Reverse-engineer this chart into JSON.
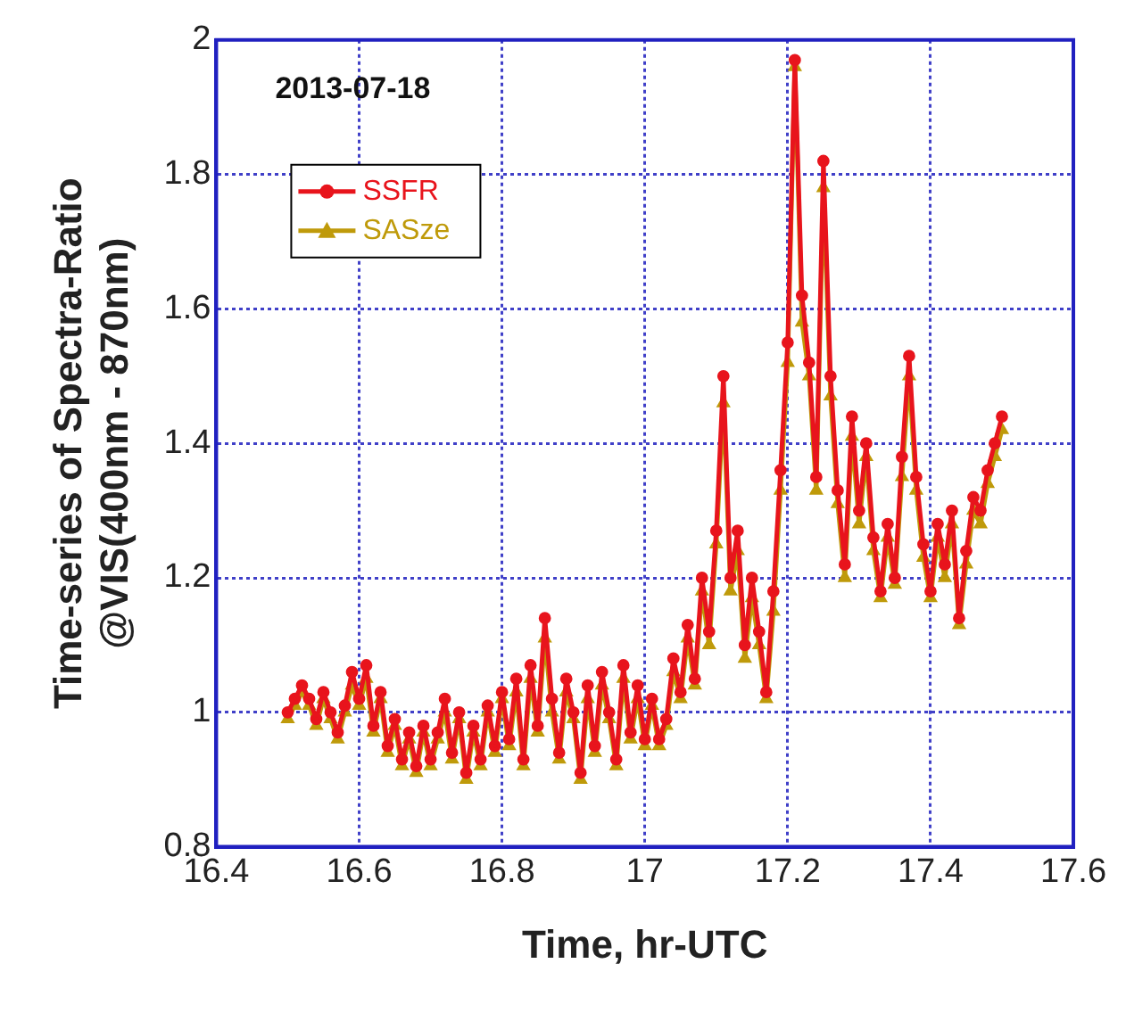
{
  "chart_data": {
    "type": "line",
    "xlabel": "Time, hr-UTC",
    "ylabel": "Time-series of Spectra-Ratio\n@VIS(400nm - 870nm)",
    "annotations": [
      "2013-07-18"
    ],
    "x": [
      16.5,
      16.51,
      16.52,
      16.53,
      16.54,
      16.55,
      16.56,
      16.57,
      16.58,
      16.59,
      16.6,
      16.61,
      16.62,
      16.63,
      16.64,
      16.65,
      16.66,
      16.67,
      16.68,
      16.69,
      16.7,
      16.71,
      16.72,
      16.73,
      16.74,
      16.75,
      16.76,
      16.77,
      16.78,
      16.79,
      16.8,
      16.81,
      16.82,
      16.83,
      16.84,
      16.85,
      16.86,
      16.87,
      16.88,
      16.89,
      16.9,
      16.91,
      16.92,
      16.93,
      16.94,
      16.95,
      16.96,
      16.97,
      16.98,
      16.99,
      17.0,
      17.01,
      17.02,
      17.03,
      17.04,
      17.05,
      17.06,
      17.07,
      17.08,
      17.09,
      17.1,
      17.11,
      17.12,
      17.13,
      17.14,
      17.15,
      17.16,
      17.17,
      17.18,
      17.19,
      17.2,
      17.21,
      17.22,
      17.23,
      17.24,
      17.25,
      17.26,
      17.27,
      17.28,
      17.29,
      17.3,
      17.31,
      17.32,
      17.33,
      17.34,
      17.35,
      17.36,
      17.37,
      17.38,
      17.39,
      17.4,
      17.41,
      17.42,
      17.43,
      17.44,
      17.45,
      17.46,
      17.47,
      17.48,
      17.49,
      17.5
    ],
    "series": [
      {
        "name": "SSFR",
        "color": "#e8141c",
        "marker": "circle",
        "values": [
          1.0,
          1.02,
          1.04,
          1.02,
          0.99,
          1.03,
          1.0,
          0.97,
          1.01,
          1.06,
          1.02,
          1.07,
          0.98,
          1.03,
          0.95,
          0.99,
          0.93,
          0.97,
          0.92,
          0.98,
          0.93,
          0.97,
          1.02,
          0.94,
          1.0,
          0.91,
          0.98,
          0.93,
          1.01,
          0.95,
          1.03,
          0.96,
          1.05,
          0.93,
          1.07,
          0.98,
          1.14,
          1.02,
          0.94,
          1.05,
          1.0,
          0.91,
          1.04,
          0.95,
          1.06,
          1.0,
          0.93,
          1.07,
          0.97,
          1.04,
          0.96,
          1.02,
          0.96,
          0.99,
          1.08,
          1.03,
          1.13,
          1.05,
          1.2,
          1.12,
          1.27,
          1.5,
          1.2,
          1.27,
          1.1,
          1.2,
          1.12,
          1.03,
          1.18,
          1.36,
          1.55,
          1.97,
          1.62,
          1.52,
          1.35,
          1.82,
          1.5,
          1.33,
          1.22,
          1.44,
          1.3,
          1.4,
          1.26,
          1.18,
          1.28,
          1.2,
          1.38,
          1.53,
          1.35,
          1.25,
          1.18,
          1.28,
          1.22,
          1.3,
          1.14,
          1.24,
          1.32,
          1.3,
          1.36,
          1.4,
          1.44
        ]
      },
      {
        "name": "SASze",
        "color": "#bf9a0a",
        "marker": "triangle",
        "values": [
          0.99,
          1.01,
          1.03,
          1.01,
          0.98,
          1.02,
          0.99,
          0.96,
          1.0,
          1.04,
          1.01,
          1.05,
          0.97,
          1.02,
          0.94,
          0.98,
          0.92,
          0.96,
          0.91,
          0.97,
          0.92,
          0.96,
          1.0,
          0.93,
          0.99,
          0.9,
          0.97,
          0.92,
          1.0,
          0.94,
          1.02,
          0.95,
          1.03,
          0.92,
          1.05,
          0.97,
          1.11,
          1.0,
          0.93,
          1.03,
          0.99,
          0.9,
          1.02,
          0.94,
          1.04,
          0.99,
          0.92,
          1.05,
          0.96,
          1.02,
          0.95,
          1.01,
          0.95,
          0.98,
          1.06,
          1.02,
          1.11,
          1.04,
          1.18,
          1.1,
          1.25,
          1.46,
          1.18,
          1.24,
          1.08,
          1.17,
          1.1,
          1.02,
          1.15,
          1.33,
          1.52,
          1.96,
          1.58,
          1.5,
          1.33,
          1.78,
          1.47,
          1.31,
          1.2,
          1.41,
          1.28,
          1.38,
          1.24,
          1.17,
          1.26,
          1.19,
          1.35,
          1.5,
          1.33,
          1.23,
          1.17,
          1.26,
          1.2,
          1.28,
          1.13,
          1.22,
          1.3,
          1.28,
          1.34,
          1.38,
          1.42
        ]
      }
    ],
    "xlim": [
      16.4,
      17.6
    ],
    "xticks": [
      16.4,
      16.6,
      16.8,
      17,
      17.2,
      17.4,
      17.6
    ],
    "ylim": [
      0.8,
      2
    ],
    "yticks": [
      0.8,
      1,
      1.2,
      1.4,
      1.6,
      1.8,
      2
    ],
    "grid": true,
    "legend": "top left",
    "line_style": "solid"
  }
}
